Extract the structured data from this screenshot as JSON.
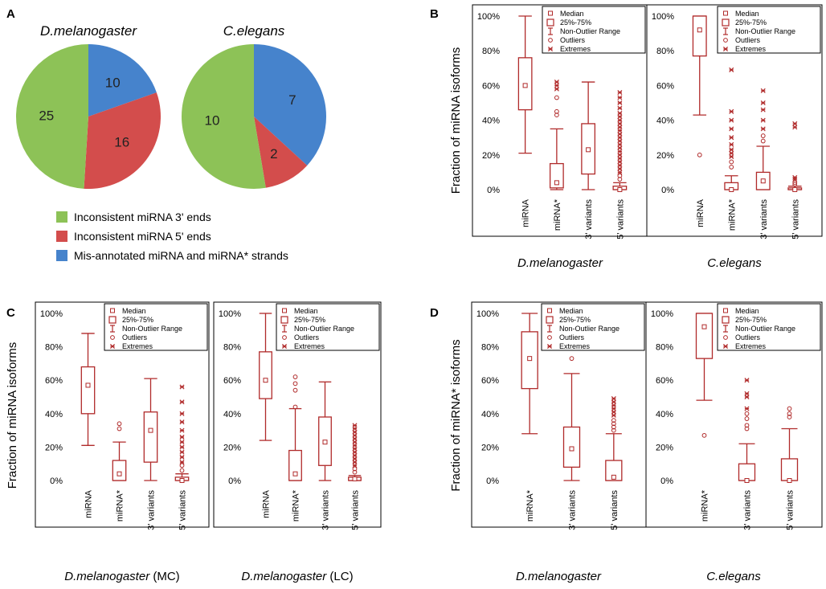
{
  "colors": {
    "box": "#b02a2a",
    "green": "#8dc257",
    "red": "#d34d4c",
    "blue": "#4683cc",
    "frame": "#000000"
  },
  "panel_labels": {
    "a": "A",
    "b": "B",
    "c": "C",
    "d": "D"
  },
  "box_legend": {
    "median": "Median",
    "iqr": "25%-75%",
    "range": "Non-Outlier Range",
    "outliers": "Outliers",
    "extremes": "Extremes"
  },
  "pie_legend": [
    {
      "label": "Inconsistent miRNA 3' ends",
      "color": "#8dc257"
    },
    {
      "label": "Inconsistent miRNA 5' ends",
      "color": "#d34d4c"
    },
    {
      "label": "Mis-annotated miRNA and miRNA* strands",
      "color": "#4683cc"
    }
  ],
  "chart_data": [
    {
      "id": "pie-dmel",
      "panel": "A",
      "type": "pie",
      "title": "D.melanogaster",
      "slices": [
        {
          "label": "Inconsistent miRNA 3' ends",
          "value": 25,
          "color": "#8dc257"
        },
        {
          "label": "Inconsistent miRNA 5' ends",
          "value": 16,
          "color": "#d34d4c"
        },
        {
          "label": "Mis-annotated miRNA and miRNA* strands",
          "value": 10,
          "color": "#4683cc"
        }
      ]
    },
    {
      "id": "pie-cel",
      "panel": "A",
      "type": "pie",
      "title": "C.elegans",
      "slices": [
        {
          "label": "Inconsistent miRNA 3' ends",
          "value": 10,
          "color": "#8dc257"
        },
        {
          "label": "Inconsistent miRNA 5' ends",
          "value": 2,
          "color": "#d34d4c"
        },
        {
          "label": "Mis-annotated miRNA and miRNA* strands",
          "value": 7,
          "color": "#4683cc"
        }
      ]
    },
    {
      "id": "box-b-dmel",
      "panel": "B",
      "type": "box",
      "ylabel": "Fraction of miRNA isoforms",
      "xcaption": "D.melanogaster",
      "ylim": [
        0,
        100
      ],
      "yticks": [
        "0%",
        "20%",
        "40%",
        "60%",
        "80%",
        "100%"
      ],
      "categories": [
        "miRNA",
        "miRNA*",
        "3' variants",
        "5' variants"
      ],
      "boxes": [
        {
          "min": 21,
          "q1": 46,
          "median": 60,
          "q3": 76,
          "max": 100,
          "outliers": [],
          "extremes": []
        },
        {
          "min": 0,
          "q1": 1,
          "median": 4,
          "q3": 15,
          "max": 35,
          "outliers": [
            43,
            45,
            53
          ],
          "extremes": [
            58,
            60,
            62
          ]
        },
        {
          "min": 0,
          "q1": 9,
          "median": 23,
          "q3": 38,
          "max": 62,
          "outliers": [],
          "extremes": []
        },
        {
          "min": 0,
          "q1": 0,
          "median": 0,
          "q3": 2,
          "max": 4,
          "outliers": [
            6,
            8
          ],
          "extremes": [
            10,
            12,
            14,
            16,
            18,
            20,
            22,
            24,
            26,
            28,
            30,
            32,
            34,
            36,
            38,
            40,
            42,
            44,
            47,
            50,
            53,
            56
          ]
        }
      ]
    },
    {
      "id": "box-b-cel",
      "panel": "B",
      "type": "box",
      "ylabel": "",
      "xcaption": "C.elegans",
      "ylim": [
        0,
        100
      ],
      "yticks": [
        "0%",
        "20%",
        "40%",
        "60%",
        "80%",
        "100%"
      ],
      "categories": [
        "miRNA",
        "miRNA*",
        "3' variants",
        "5' variants"
      ],
      "boxes": [
        {
          "min": 43,
          "q1": 77,
          "median": 92,
          "q3": 100,
          "max": 100,
          "outliers": [
            20
          ],
          "extremes": []
        },
        {
          "min": 0,
          "q1": 0,
          "median": 0,
          "q3": 4,
          "max": 8,
          "outliers": [
            13,
            16
          ],
          "extremes": [
            19,
            21,
            23,
            26,
            30,
            35,
            40,
            45,
            69
          ]
        },
        {
          "min": 0,
          "q1": 0,
          "median": 5,
          "q3": 10,
          "max": 25,
          "outliers": [
            28,
            31
          ],
          "extremes": [
            35,
            40,
            46,
            50,
            57
          ]
        },
        {
          "min": 0,
          "q1": 0,
          "median": 0,
          "q3": 1,
          "max": 2,
          "outliers": [
            3,
            4
          ],
          "extremes": [
            6,
            7,
            36,
            38
          ]
        }
      ]
    },
    {
      "id": "box-c-mc",
      "panel": "C",
      "type": "box",
      "ylabel": "Fraction of miRNA isoforms",
      "xcaption": "D.melanogaster (MC)",
      "ylim": [
        0,
        100
      ],
      "yticks": [
        "0%",
        "20%",
        "40%",
        "60%",
        "80%",
        "100%"
      ],
      "categories": [
        "miRNA",
        "miRNA*",
        "3' variants",
        "5' variants"
      ],
      "boxes": [
        {
          "min": 21,
          "q1": 40,
          "median": 57,
          "q3": 68,
          "max": 88,
          "outliers": [],
          "extremes": []
        },
        {
          "min": 0,
          "q1": 0,
          "median": 4,
          "q3": 12,
          "max": 23,
          "outliers": [
            31,
            34
          ],
          "extremes": []
        },
        {
          "min": 0,
          "q1": 11,
          "median": 30,
          "q3": 41,
          "max": 61,
          "outliers": [],
          "extremes": []
        },
        {
          "min": 0,
          "q1": 0,
          "median": 0,
          "q3": 2,
          "max": 4,
          "outliers": [
            6,
            9
          ],
          "extremes": [
            11,
            14,
            17,
            20,
            23,
            26,
            30,
            35,
            40,
            47,
            56
          ]
        }
      ]
    },
    {
      "id": "box-c-lc",
      "panel": "C",
      "type": "box",
      "ylabel": "",
      "xcaption": "D.melanogaster (LC)",
      "ylim": [
        0,
        100
      ],
      "yticks": [
        "0%",
        "20%",
        "40%",
        "60%",
        "80%",
        "100%"
      ],
      "categories": [
        "miRNA",
        "miRNA*",
        "3' variants",
        "5' variants"
      ],
      "boxes": [
        {
          "min": 24,
          "q1": 49,
          "median": 60,
          "q3": 77,
          "max": 100,
          "outliers": [],
          "extremes": []
        },
        {
          "min": 0,
          "q1": 0,
          "median": 4,
          "q3": 18,
          "max": 43,
          "outliers": [
            44,
            54,
            58,
            62
          ],
          "extremes": []
        },
        {
          "min": 0,
          "q1": 9,
          "median": 23,
          "q3": 38,
          "max": 59,
          "outliers": [],
          "extremes": []
        },
        {
          "min": 0,
          "q1": 0,
          "median": 1,
          "q3": 2,
          "max": 3,
          "outliers": [
            5,
            7
          ],
          "extremes": [
            9,
            11,
            13,
            15,
            17,
            19,
            21,
            23,
            25,
            27,
            29,
            31,
            33
          ]
        }
      ]
    },
    {
      "id": "box-d-dmel",
      "panel": "D",
      "type": "box",
      "ylabel": "Fraction of miRNA* isoforms",
      "xcaption": "D.melanogaster",
      "ylim": [
        0,
        100
      ],
      "yticks": [
        "0%",
        "20%",
        "40%",
        "60%",
        "80%",
        "100%"
      ],
      "categories": [
        "miRNA*",
        "3' variants",
        "5' variants"
      ],
      "boxes": [
        {
          "min": 28,
          "q1": 55,
          "median": 73,
          "q3": 89,
          "max": 100,
          "outliers": [],
          "extremes": []
        },
        {
          "min": 0,
          "q1": 8,
          "median": 19,
          "q3": 32,
          "max": 64,
          "outliers": [
            73
          ],
          "extremes": []
        },
        {
          "min": 0,
          "q1": 0,
          "median": 2,
          "q3": 12,
          "max": 28,
          "outliers": [
            30,
            32,
            34,
            36
          ],
          "extremes": [
            39,
            41,
            43,
            45,
            47,
            49
          ]
        }
      ]
    },
    {
      "id": "box-d-cel",
      "panel": "D",
      "type": "box",
      "ylabel": "",
      "xcaption": "C.elegans",
      "ylim": [
        0,
        100
      ],
      "yticks": [
        "0%",
        "20%",
        "40%",
        "60%",
        "80%",
        "100%"
      ],
      "categories": [
        "miRNA*",
        "3' variants",
        "5' variants"
      ],
      "boxes": [
        {
          "min": 48,
          "q1": 73,
          "median": 92,
          "q3": 100,
          "max": 100,
          "outliers": [
            27
          ],
          "extremes": []
        },
        {
          "min": 0,
          "q1": 0,
          "median": 0,
          "q3": 10,
          "max": 22,
          "outliers": [
            31,
            33,
            37,
            40
          ],
          "extremes": [
            43,
            50,
            52,
            60
          ]
        },
        {
          "min": 0,
          "q1": 0,
          "median": 0,
          "q3": 13,
          "max": 31,
          "outliers": [
            38,
            40,
            43
          ],
          "extremes": []
        }
      ]
    }
  ]
}
